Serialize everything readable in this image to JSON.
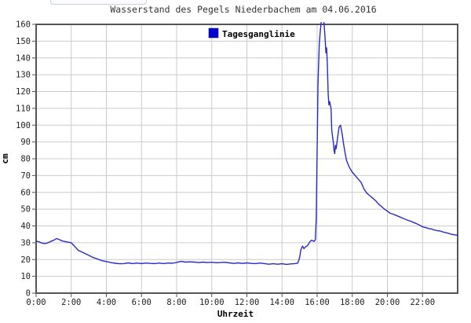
{
  "chart_data": {
    "type": "line",
    "title": "Wasserstand des Pegels Niederbachem am  04.06.2016",
    "xlabel": "Uhrzeit",
    "ylabel": "cm",
    "legend": {
      "label": "Tagesganglinie",
      "position": "top-center-inside",
      "swatch_color": "#0000cc"
    },
    "xlim_hours": [
      0,
      24
    ],
    "ylim": [
      0,
      160
    ],
    "grid": true,
    "x_tick_hours": [
      0,
      2,
      4,
      6,
      8,
      10,
      12,
      14,
      16,
      18,
      20,
      22
    ],
    "x_tick_labels": [
      "0:00",
      "2:00",
      "4:00",
      "6:00",
      "8:00",
      "10:00",
      "12:00",
      "14:00",
      "16:00",
      "18:00",
      "20:00",
      "22:00"
    ],
    "y_ticks": [
      0,
      10,
      20,
      30,
      40,
      50,
      60,
      70,
      80,
      90,
      100,
      110,
      120,
      130,
      140,
      150,
      160
    ],
    "line_color": "#2929c8",
    "grid_color": "#cccccc",
    "frame_color": "#555555",
    "tick_color": "#555555",
    "peak_clipped_above_ymax": true,
    "series": [
      {
        "name": "Tagesganglinie",
        "x_unit": "hours",
        "y_unit": "cm",
        "points": [
          [
            0,
            31
          ],
          [
            0.17,
            30.5
          ],
          [
            0.33,
            29.8
          ],
          [
            0.5,
            29.5
          ],
          [
            0.67,
            30
          ],
          [
            0.83,
            30.8
          ],
          [
            1,
            31.5
          ],
          [
            1.17,
            32.5
          ],
          [
            1.33,
            31.8
          ],
          [
            1.5,
            31
          ],
          [
            1.75,
            30.5
          ],
          [
            2,
            30
          ],
          [
            2.2,
            27.8
          ],
          [
            2.4,
            25.5
          ],
          [
            2.6,
            24.5
          ],
          [
            2.8,
            23.5
          ],
          [
            3,
            22.5
          ],
          [
            3.25,
            21.2
          ],
          [
            3.5,
            20.3
          ],
          [
            3.75,
            19.3
          ],
          [
            4,
            18.8
          ],
          [
            4.25,
            18.2
          ],
          [
            4.5,
            17.8
          ],
          [
            4.75,
            17.5
          ],
          [
            5,
            17.6
          ],
          [
            5.25,
            18
          ],
          [
            5.5,
            17.6
          ],
          [
            5.75,
            17.9
          ],
          [
            6,
            17.6
          ],
          [
            6.25,
            17.9
          ],
          [
            6.5,
            17.7
          ],
          [
            6.75,
            17.6
          ],
          [
            7,
            17.9
          ],
          [
            7.25,
            17.6
          ],
          [
            7.5,
            17.9
          ],
          [
            7.75,
            17.8
          ],
          [
            8,
            18.3
          ],
          [
            8.25,
            18.9
          ],
          [
            8.5,
            18.5
          ],
          [
            8.75,
            18.6
          ],
          [
            9,
            18.5
          ],
          [
            9.25,
            18.2
          ],
          [
            9.5,
            18.5
          ],
          [
            9.75,
            18.2
          ],
          [
            10,
            18.4
          ],
          [
            10.25,
            18.1
          ],
          [
            10.5,
            18.2
          ],
          [
            10.75,
            18.4
          ],
          [
            11,
            18
          ],
          [
            11.25,
            17.7
          ],
          [
            11.5,
            18
          ],
          [
            11.75,
            17.7
          ],
          [
            12,
            18
          ],
          [
            12.25,
            17.7
          ],
          [
            12.5,
            17.6
          ],
          [
            12.75,
            17.9
          ],
          [
            13,
            17.6
          ],
          [
            13.25,
            17.2
          ],
          [
            13.5,
            17.5
          ],
          [
            13.75,
            17.2
          ],
          [
            14,
            17.5
          ],
          [
            14.25,
            17.1
          ],
          [
            14.5,
            17.4
          ],
          [
            14.75,
            17.6
          ],
          [
            14.9,
            17.9
          ],
          [
            15,
            21
          ],
          [
            15.08,
            26
          ],
          [
            15.17,
            28
          ],
          [
            15.25,
            26.5
          ],
          [
            15.33,
            27.5
          ],
          [
            15.42,
            28
          ],
          [
            15.5,
            29
          ],
          [
            15.58,
            30.5
          ],
          [
            15.67,
            31.5
          ],
          [
            15.75,
            31.2
          ],
          [
            15.83,
            30.8
          ],
          [
            15.9,
            32
          ],
          [
            15.95,
            45
          ],
          [
            16,
            85
          ],
          [
            16.05,
            125
          ],
          [
            16.12,
            148
          ],
          [
            16.18,
            156
          ],
          [
            16.25,
            163
          ],
          [
            16.33,
            166
          ],
          [
            16.4,
            160
          ],
          [
            16.45,
            152
          ],
          [
            16.5,
            143
          ],
          [
            16.54,
            146
          ],
          [
            16.58,
            136
          ],
          [
            16.63,
            118
          ],
          [
            16.67,
            112
          ],
          [
            16.71,
            114
          ],
          [
            16.75,
            112
          ],
          [
            16.79,
            110
          ],
          [
            16.83,
            97
          ],
          [
            16.88,
            93
          ],
          [
            16.92,
            90
          ],
          [
            16.96,
            85
          ],
          [
            17,
            83
          ],
          [
            17.04,
            88
          ],
          [
            17.08,
            86
          ],
          [
            17.17,
            93
          ],
          [
            17.25,
            99
          ],
          [
            17.33,
            100
          ],
          [
            17.42,
            95
          ],
          [
            17.5,
            89
          ],
          [
            17.58,
            84
          ],
          [
            17.67,
            79
          ],
          [
            17.75,
            77
          ],
          [
            17.83,
            75
          ],
          [
            18,
            72
          ],
          [
            18.17,
            70
          ],
          [
            18.33,
            68
          ],
          [
            18.5,
            66
          ],
          [
            18.67,
            62
          ],
          [
            18.83,
            59.5
          ],
          [
            19,
            58
          ],
          [
            19.17,
            56.5
          ],
          [
            19.33,
            55
          ],
          [
            19.5,
            53
          ],
          [
            19.67,
            51.5
          ],
          [
            19.83,
            50
          ],
          [
            20,
            48.8
          ],
          [
            20.17,
            47.5
          ],
          [
            20.33,
            47
          ],
          [
            20.5,
            46.2
          ],
          [
            20.67,
            45.5
          ],
          [
            21,
            44
          ],
          [
            21.17,
            43.3
          ],
          [
            21.33,
            42.8
          ],
          [
            21.5,
            42
          ],
          [
            21.67,
            41.3
          ],
          [
            21.83,
            40.5
          ],
          [
            22,
            39.5
          ],
          [
            22.17,
            39
          ],
          [
            22.33,
            38.5
          ],
          [
            22.5,
            38.2
          ],
          [
            22.67,
            37.6
          ],
          [
            22.83,
            37.2
          ],
          [
            23,
            37
          ],
          [
            23.17,
            36.4
          ],
          [
            23.33,
            36
          ],
          [
            23.5,
            35.5
          ],
          [
            23.67,
            35
          ],
          [
            23.83,
            34.7
          ],
          [
            23.98,
            34.5
          ]
        ]
      }
    ]
  }
}
